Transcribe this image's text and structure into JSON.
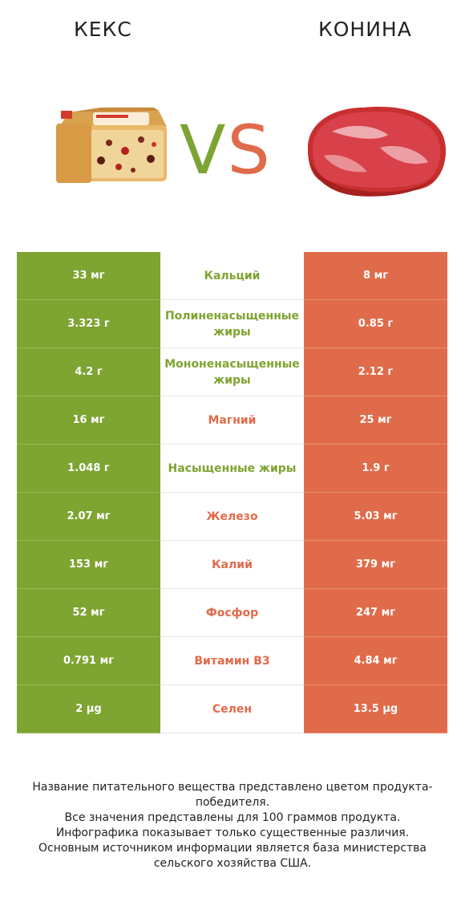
{
  "header": {
    "left_food": "кекс",
    "right_food": "конина",
    "vs_v": "V",
    "vs_s": "S"
  },
  "colors": {
    "left_winner": "#7ea432",
    "right_winner": "#e06b4a"
  },
  "rows": [
    {
      "left": "33 мг",
      "nutrient": "Кальций",
      "right": "8 мг",
      "winner": "left"
    },
    {
      "left": "3.323 г",
      "nutrient": "Полиненасыщенные жиры",
      "right": "0.85 г",
      "winner": "left"
    },
    {
      "left": "4.2 г",
      "nutrient": "Мононенасыщенные жиры",
      "right": "2.12 г",
      "winner": "left"
    },
    {
      "left": "16 мг",
      "nutrient": "Магний",
      "right": "25 мг",
      "winner": "right"
    },
    {
      "left": "1.048 г",
      "nutrient": "Насыщенные жиры",
      "right": "1.9 г",
      "winner": "left"
    },
    {
      "left": "2.07 мг",
      "nutrient": "Железо",
      "right": "5.03 мг",
      "winner": "right"
    },
    {
      "left": "153 мг",
      "nutrient": "Калий",
      "right": "379 мг",
      "winner": "right"
    },
    {
      "left": "52 мг",
      "nutrient": "Фосфор",
      "right": "247 мг",
      "winner": "right"
    },
    {
      "left": "0.791 мг",
      "nutrient": "Витамин B3",
      "right": "4.84 мг",
      "winner": "right"
    },
    {
      "left": "2 µg",
      "nutrient": "Селен",
      "right": "13.5 µg",
      "winner": "right"
    }
  ],
  "footer": {
    "line1": "Название питательного вещества представлено цветом продукта-победителя.",
    "line2": "Все значения представлены для 100 граммов продукта.",
    "line3": "Инфографика показывает только существенные различия.",
    "line4": "Основным источником информации является база министерства сельского хозяйства США."
  }
}
